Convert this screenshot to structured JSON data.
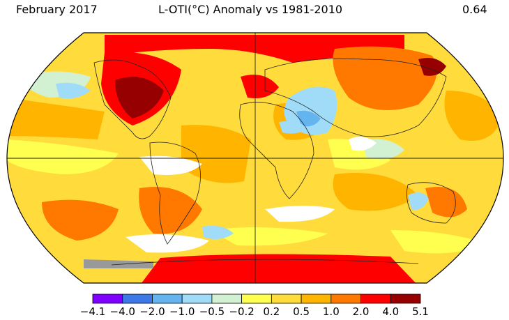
{
  "header": {
    "left": "February 2017",
    "center": "L-OTI(°C) Anomaly vs 1981-2010",
    "right": "0.64"
  },
  "colorbar": {
    "ticks": [
      "−4.1",
      "−4.0",
      "−2.0",
      "−1.0",
      "−0.5",
      "−0.2",
      "0.2",
      "0.5",
      "1.0",
      "2.0",
      "4.0",
      "5.1"
    ],
    "colors": [
      "#8000ff",
      "#3c78e6",
      "#64b4f0",
      "#a0dcf8",
      "#d2f0d2",
      "#ffffff",
      "#ffff50",
      "#ffdc3c",
      "#ffb400",
      "#ff7800",
      "#ff0000",
      "#960000"
    ]
  }
}
